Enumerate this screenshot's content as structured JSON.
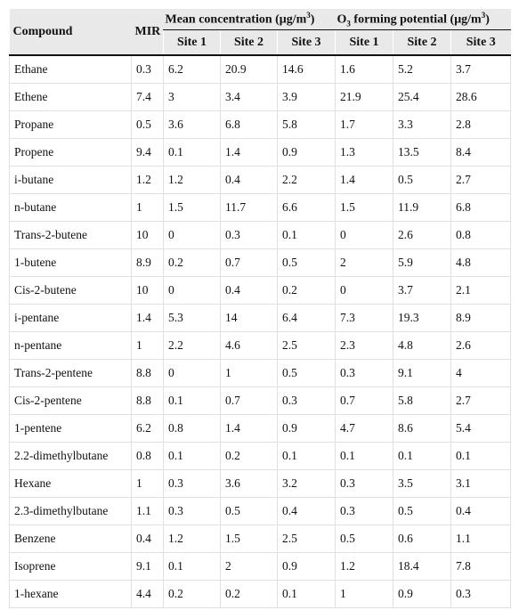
{
  "header": {
    "compound": "Compound",
    "mir": "MIR",
    "mean_group": [
      "Mean concentration (μg/m",
      "3",
      ")"
    ],
    "o3_group": [
      "O",
      "3",
      " forming potential (μg/m",
      "3",
      ")"
    ],
    "mean_sites": [
      "Site 1",
      "Site 2",
      "Site 3"
    ],
    "o3_sites": [
      "Site 1",
      "Site 2",
      "Site 3"
    ]
  },
  "table": {
    "rows": [
      [
        "Ethane",
        0.3,
        6.2,
        20.9,
        14.6,
        1.6,
        5.2,
        3.7
      ],
      [
        "Ethene",
        7.4,
        3,
        3.4,
        3.9,
        21.9,
        25.4,
        28.6
      ],
      [
        "Propane",
        0.5,
        3.6,
        6.8,
        5.8,
        1.7,
        3.3,
        2.8
      ],
      [
        "Propene",
        9.4,
        0.1,
        1.4,
        0.9,
        1.3,
        13.5,
        8.4
      ],
      [
        "i-butane",
        1.2,
        1.2,
        0.4,
        2.2,
        1.4,
        0.5,
        2.7
      ],
      [
        "n-butane",
        1,
        1.5,
        11.7,
        6.6,
        1.5,
        11.9,
        6.8
      ],
      [
        "Trans-2-butene",
        10,
        0,
        0.3,
        0.1,
        0,
        2.6,
        0.8
      ],
      [
        "1-butene",
        8.9,
        0.2,
        0.7,
        0.5,
        2,
        5.9,
        4.8
      ],
      [
        "Cis-2-butene",
        10,
        0,
        0.4,
        0.2,
        0,
        3.7,
        2.1
      ],
      [
        "i-pentane",
        1.4,
        5.3,
        14,
        6.4,
        7.3,
        19.3,
        8.9
      ],
      [
        "n-pentane",
        1,
        2.2,
        4.6,
        2.5,
        2.3,
        4.8,
        2.6
      ],
      [
        "Trans-2-pentene",
        8.8,
        0,
        1,
        0.5,
        0.3,
        9.1,
        4
      ],
      [
        "Cis-2-pentene",
        8.8,
        0.1,
        0.7,
        0.3,
        0.7,
        5.8,
        2.7
      ],
      [
        "1-pentene",
        6.2,
        0.8,
        1.4,
        0.9,
        4.7,
        8.6,
        5.4
      ],
      [
        "2.2-dimethylbutane",
        0.8,
        0.1,
        0.2,
        0.1,
        0.1,
        0.1,
        0.1
      ],
      [
        "Hexane",
        1,
        0.3,
        3.6,
        3.2,
        0.3,
        3.5,
        3.1
      ],
      [
        "2.3-dimethylbutane",
        1.1,
        0.3,
        0.5,
        0.4,
        0.3,
        0.5,
        0.4
      ],
      [
        "Benzene",
        0.4,
        1.2,
        1.5,
        2.5,
        0.5,
        0.6,
        1.1
      ],
      [
        "Isoprene",
        9.1,
        0.1,
        2,
        0.9,
        1.2,
        18.4,
        7.8
      ],
      [
        "1-hexane",
        4.4,
        0.2,
        0.2,
        0.1,
        1,
        0.9,
        0.3
      ]
    ]
  }
}
